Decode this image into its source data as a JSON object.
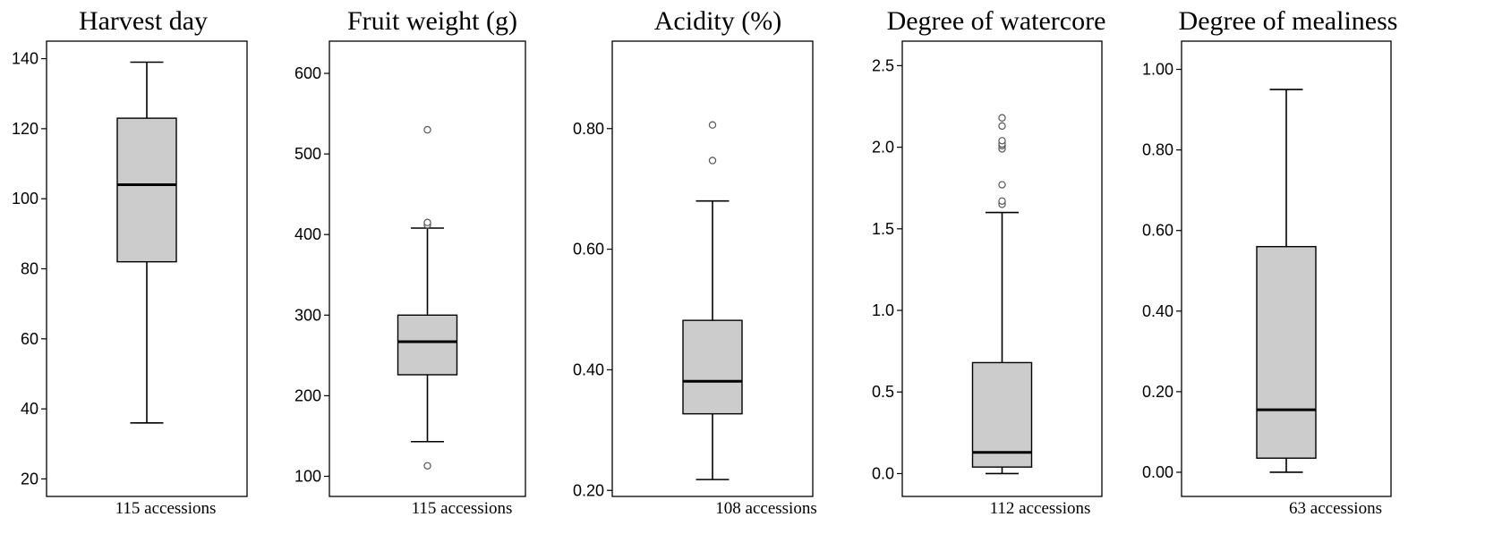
{
  "chart_data": [
    {
      "type": "box",
      "title": "Harvest day",
      "n_label": "115 accessions",
      "ylim": [
        15,
        145
      ],
      "yticks": [
        20,
        40,
        60,
        80,
        100,
        120,
        140
      ],
      "tick_labels": [
        "20",
        "40",
        "60",
        "80",
        "100",
        "120",
        "140"
      ],
      "box": {
        "whisker_low": 36,
        "q1": 82,
        "median": 104,
        "q3": 123,
        "whisker_high": 139,
        "outliers": []
      },
      "colors": {
        "box_fill": "#cccccc",
        "stroke": "#000000"
      }
    },
    {
      "type": "box",
      "title": "Fruit weight (g)",
      "n_label": "115 accessions",
      "ylim": [
        75,
        640
      ],
      "yticks": [
        100,
        200,
        300,
        400,
        500,
        600
      ],
      "tick_labels": [
        "100",
        "200",
        "300",
        "400",
        "500",
        "600"
      ],
      "box": {
        "whisker_low": 143,
        "q1": 226,
        "median": 267,
        "q3": 300,
        "whisker_high": 408,
        "outliers": [
          113,
          412,
          415,
          530
        ]
      },
      "colors": {
        "box_fill": "#cccccc",
        "stroke": "#000000"
      }
    },
    {
      "type": "box",
      "title": "Acidity (%)",
      "n_label": "108 accessions",
      "ylim": [
        0.19,
        0.945
      ],
      "yticks": [
        0.2,
        0.4,
        0.6,
        0.8
      ],
      "tick_labels": [
        "0.20",
        "0.40",
        "0.60",
        "0.80"
      ],
      "box": {
        "whisker_low": 0.218,
        "q1": 0.327,
        "median": 0.381,
        "q3": 0.482,
        "whisker_high": 0.68,
        "outliers": [
          0.747,
          0.806
        ]
      },
      "colors": {
        "box_fill": "#cccccc",
        "stroke": "#000000"
      }
    },
    {
      "type": "box",
      "title": "Degree of watercore",
      "n_label": "112 accessions",
      "ylim": [
        -0.14,
        2.65
      ],
      "yticks": [
        0,
        0.5,
        1,
        1.5,
        2,
        2.5
      ],
      "tick_labels": [
        "0.0",
        "0.5",
        "1.0",
        "1.5",
        "2.0",
        "2.5"
      ],
      "box": {
        "whisker_low": 0,
        "q1": 0.04,
        "median": 0.13,
        "q3": 0.68,
        "whisker_high": 1.6,
        "outliers": [
          1.65,
          1.67,
          1.77,
          1.99,
          2.01,
          2.02,
          2.04,
          2.13,
          2.18
        ]
      },
      "colors": {
        "box_fill": "#cccccc",
        "stroke": "#000000"
      }
    },
    {
      "type": "box",
      "title": "Degree of mealiness",
      "n_label": "63 accessions",
      "ylim": [
        -0.06,
        1.07
      ],
      "yticks": [
        0,
        0.2,
        0.4,
        0.6,
        0.8,
        1
      ],
      "tick_labels": [
        "0.00",
        "0.20",
        "0.40",
        "0.60",
        "0.80",
        "1.00"
      ],
      "box": {
        "whisker_low": 0,
        "q1": 0.035,
        "median": 0.155,
        "q3": 0.56,
        "whisker_high": 0.95,
        "outliers": []
      },
      "colors": {
        "box_fill": "#cccccc",
        "stroke": "#000000"
      }
    }
  ]
}
